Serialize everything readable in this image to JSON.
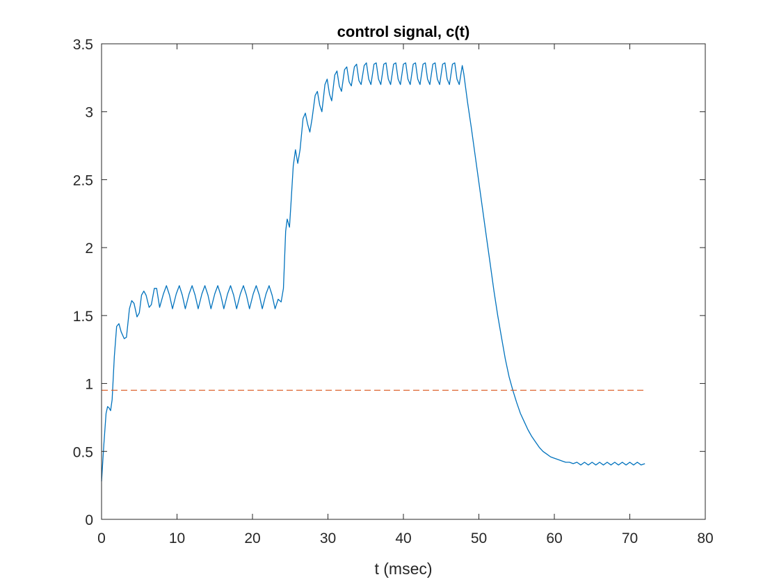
{
  "chart_data": {
    "type": "line",
    "title": "control signal, c(t)",
    "xlabel": "t (msec)",
    "ylabel": "",
    "xlim": [
      0,
      80
    ],
    "ylim": [
      0,
      3.5
    ],
    "xticks": [
      0,
      10,
      20,
      30,
      40,
      50,
      60,
      70,
      80
    ],
    "yticks": [
      0,
      0.5,
      1,
      1.5,
      2,
      2.5,
      3,
      3.5
    ],
    "xtick_labels": [
      "0",
      "10",
      "20",
      "30",
      "40",
      "50",
      "60",
      "70",
      "80"
    ],
    "ytick_labels": [
      "0",
      "0.5",
      "1",
      "1.5",
      "2",
      "2.5",
      "3",
      "3.5"
    ],
    "grid": false,
    "box": true,
    "series": [
      {
        "color": "#0072BD",
        "style": "solid",
        "points": [
          [
            0,
            0.28
          ],
          [
            0.3,
            0.55
          ],
          [
            0.6,
            0.78
          ],
          [
            0.8,
            0.83
          ],
          [
            1.0,
            0.82
          ],
          [
            1.2,
            0.8
          ],
          [
            1.4,
            0.88
          ],
          [
            1.7,
            1.2
          ],
          [
            2.0,
            1.42
          ],
          [
            2.3,
            1.44
          ],
          [
            2.6,
            1.38
          ],
          [
            3.0,
            1.33
          ],
          [
            3.3,
            1.34
          ],
          [
            3.7,
            1.55
          ],
          [
            4.0,
            1.61
          ],
          [
            4.3,
            1.59
          ],
          [
            4.7,
            1.49
          ],
          [
            5.0,
            1.52
          ],
          [
            5.3,
            1.65
          ],
          [
            5.6,
            1.68
          ],
          [
            5.9,
            1.65
          ],
          [
            6.3,
            1.56
          ],
          [
            6.6,
            1.58
          ],
          [
            7.0,
            1.7
          ],
          [
            7.3,
            1.7
          ],
          [
            7.7,
            1.56
          ],
          [
            8.2,
            1.66
          ],
          [
            8.6,
            1.72
          ],
          [
            9.0,
            1.65
          ],
          [
            9.4,
            1.55
          ],
          [
            9.9,
            1.66
          ],
          [
            10.3,
            1.72
          ],
          [
            10.7,
            1.65
          ],
          [
            11.1,
            1.55
          ],
          [
            11.6,
            1.66
          ],
          [
            12.0,
            1.72
          ],
          [
            12.4,
            1.65
          ],
          [
            12.8,
            1.55
          ],
          [
            13.3,
            1.66
          ],
          [
            13.7,
            1.72
          ],
          [
            14.1,
            1.65
          ],
          [
            14.5,
            1.55
          ],
          [
            15.0,
            1.66
          ],
          [
            15.4,
            1.72
          ],
          [
            15.8,
            1.65
          ],
          [
            16.2,
            1.55
          ],
          [
            16.7,
            1.66
          ],
          [
            17.1,
            1.72
          ],
          [
            17.5,
            1.65
          ],
          [
            17.9,
            1.55
          ],
          [
            18.4,
            1.66
          ],
          [
            18.8,
            1.72
          ],
          [
            19.2,
            1.65
          ],
          [
            19.6,
            1.55
          ],
          [
            20.1,
            1.66
          ],
          [
            20.5,
            1.72
          ],
          [
            20.9,
            1.65
          ],
          [
            21.3,
            1.55
          ],
          [
            21.8,
            1.66
          ],
          [
            22.2,
            1.72
          ],
          [
            22.6,
            1.65
          ],
          [
            23.0,
            1.55
          ],
          [
            23.4,
            1.62
          ],
          [
            23.8,
            1.6
          ],
          [
            24.1,
            1.7
          ],
          [
            24.4,
            2.12
          ],
          [
            24.6,
            2.21
          ],
          [
            24.9,
            2.15
          ],
          [
            25.1,
            2.32
          ],
          [
            25.4,
            2.6
          ],
          [
            25.7,
            2.72
          ],
          [
            26.0,
            2.62
          ],
          [
            26.3,
            2.72
          ],
          [
            26.7,
            2.95
          ],
          [
            27.0,
            2.99
          ],
          [
            27.3,
            2.91
          ],
          [
            27.6,
            2.85
          ],
          [
            27.9,
            2.95
          ],
          [
            28.3,
            3.12
          ],
          [
            28.6,
            3.15
          ],
          [
            28.9,
            3.05
          ],
          [
            29.2,
            3.0
          ],
          [
            29.6,
            3.2
          ],
          [
            29.9,
            3.24
          ],
          [
            30.2,
            3.13
          ],
          [
            30.5,
            3.08
          ],
          [
            30.9,
            3.27
          ],
          [
            31.2,
            3.3
          ],
          [
            31.5,
            3.19
          ],
          [
            31.8,
            3.15
          ],
          [
            32.2,
            3.31
          ],
          [
            32.5,
            3.33
          ],
          [
            32.8,
            3.22
          ],
          [
            33.1,
            3.19
          ],
          [
            33.5,
            3.33
          ],
          [
            33.8,
            3.35
          ],
          [
            34.1,
            3.23
          ],
          [
            34.4,
            3.2
          ],
          [
            34.8,
            3.34
          ],
          [
            35.1,
            3.36
          ],
          [
            35.4,
            3.24
          ],
          [
            35.7,
            3.2
          ],
          [
            36.1,
            3.35
          ],
          [
            36.4,
            3.36
          ],
          [
            36.7,
            3.24
          ],
          [
            37.0,
            3.2
          ],
          [
            37.4,
            3.35
          ],
          [
            37.7,
            3.36
          ],
          [
            38.0,
            3.24
          ],
          [
            38.3,
            3.2
          ],
          [
            38.7,
            3.35
          ],
          [
            39.0,
            3.36
          ],
          [
            39.3,
            3.24
          ],
          [
            39.6,
            3.2
          ],
          [
            40.0,
            3.35
          ],
          [
            40.3,
            3.36
          ],
          [
            40.6,
            3.24
          ],
          [
            40.9,
            3.2
          ],
          [
            41.3,
            3.35
          ],
          [
            41.6,
            3.36
          ],
          [
            41.9,
            3.24
          ],
          [
            42.2,
            3.2
          ],
          [
            42.6,
            3.35
          ],
          [
            42.9,
            3.36
          ],
          [
            43.2,
            3.24
          ],
          [
            43.5,
            3.2
          ],
          [
            43.9,
            3.35
          ],
          [
            44.2,
            3.36
          ],
          [
            44.5,
            3.24
          ],
          [
            44.8,
            3.2
          ],
          [
            45.2,
            3.35
          ],
          [
            45.5,
            3.36
          ],
          [
            45.8,
            3.24
          ],
          [
            46.1,
            3.2
          ],
          [
            46.5,
            3.35
          ],
          [
            46.8,
            3.36
          ],
          [
            47.1,
            3.24
          ],
          [
            47.4,
            3.2
          ],
          [
            47.8,
            3.34
          ],
          [
            48.0,
            3.28
          ],
          [
            48.5,
            3.07
          ],
          [
            49.0,
            2.88
          ],
          [
            49.5,
            2.68
          ],
          [
            50.0,
            2.48
          ],
          [
            50.5,
            2.28
          ],
          [
            51.0,
            2.08
          ],
          [
            51.5,
            1.88
          ],
          [
            52.0,
            1.68
          ],
          [
            52.5,
            1.5
          ],
          [
            53.0,
            1.34
          ],
          [
            53.5,
            1.18
          ],
          [
            54.0,
            1.05
          ],
          [
            54.5,
            0.95
          ],
          [
            55.0,
            0.86
          ],
          [
            55.5,
            0.78
          ],
          [
            56.0,
            0.72
          ],
          [
            56.5,
            0.66
          ],
          [
            57.0,
            0.61
          ],
          [
            57.5,
            0.57
          ],
          [
            58.0,
            0.53
          ],
          [
            58.5,
            0.5
          ],
          [
            59.0,
            0.48
          ],
          [
            59.5,
            0.46
          ],
          [
            60.0,
            0.45
          ],
          [
            60.5,
            0.44
          ],
          [
            61.0,
            0.43
          ],
          [
            61.5,
            0.42
          ],
          [
            62.0,
            0.42
          ],
          [
            62.5,
            0.41
          ],
          [
            63.0,
            0.42
          ],
          [
            63.5,
            0.4
          ],
          [
            64.0,
            0.42
          ],
          [
            64.5,
            0.4
          ],
          [
            65.0,
            0.42
          ],
          [
            65.5,
            0.4
          ],
          [
            66.0,
            0.42
          ],
          [
            66.5,
            0.4
          ],
          [
            67.0,
            0.42
          ],
          [
            67.5,
            0.4
          ],
          [
            68.0,
            0.42
          ],
          [
            68.5,
            0.4
          ],
          [
            69.0,
            0.42
          ],
          [
            69.5,
            0.4
          ],
          [
            70.0,
            0.42
          ],
          [
            70.5,
            0.4
          ],
          [
            71.0,
            0.42
          ],
          [
            71.5,
            0.4
          ],
          [
            72.0,
            0.41
          ]
        ]
      },
      {
        "color": "#D95319",
        "style": "dashed",
        "points": [
          [
            0,
            0.95
          ],
          [
            72,
            0.95
          ]
        ]
      }
    ]
  }
}
